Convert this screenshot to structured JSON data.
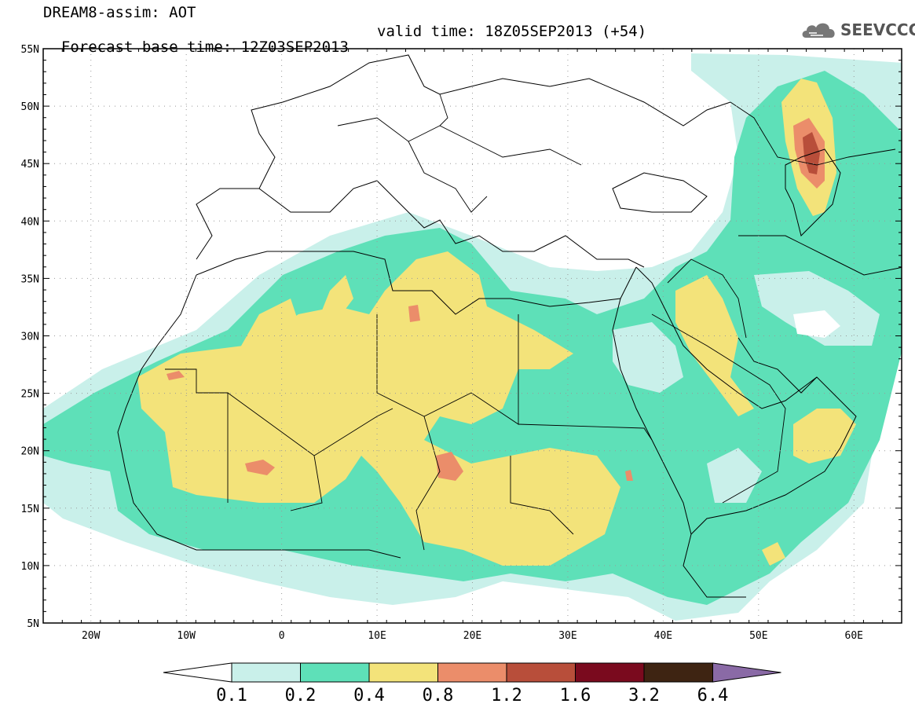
{
  "header": {
    "title_line1": "DREAM8-assim: AOT",
    "title_line2_base": "Forecast base time: 12Z03SEP2013",
    "title_line2_valid": "valid time: 18Z05SEP2013 (+54)",
    "logo_text": "SEEVCCC",
    "logo_icon": "cloud-icon"
  },
  "map": {
    "lon_ticks": [
      "20W",
      "10W",
      "0",
      "10E",
      "20E",
      "30E",
      "40E",
      "50E",
      "60E"
    ],
    "lat_ticks": [
      "55N",
      "50N",
      "45N",
      "40N",
      "35N",
      "30N",
      "25N",
      "20N",
      "15N",
      "10N",
      "5N"
    ],
    "lon_range": [
      -25,
      65
    ],
    "lat_range": [
      5,
      55
    ]
  },
  "legend": {
    "labels": [
      "0.1",
      "0.2",
      "0.4",
      "0.8",
      "1.2",
      "1.6",
      "3.2",
      "6.4"
    ],
    "colors": [
      "#ffffff",
      "#c9f0ea",
      "#5ee0b8",
      "#f3e37a",
      "#eb8d6a",
      "#b84e3a",
      "#7a0a1e",
      "#3e2412",
      "#8a6aa6"
    ]
  }
}
